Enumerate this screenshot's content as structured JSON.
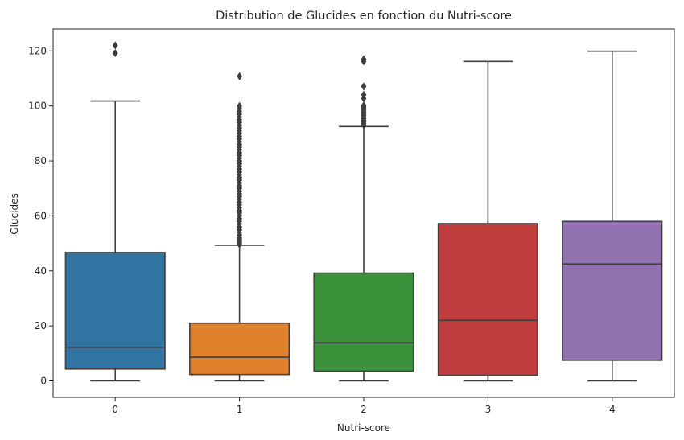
{
  "chart_data": {
    "type": "box",
    "title": "Distribution de Glucides en fonction du Nutri-score",
    "xlabel": "Nutri-score",
    "ylabel": "Glucides",
    "categories": [
      "0",
      "1",
      "2",
      "3",
      "4"
    ],
    "ylim": [
      -6,
      128
    ],
    "yticks": [
      0,
      20,
      40,
      60,
      80,
      100,
      120
    ],
    "grid": false,
    "boxes": [
      {
        "category": "0",
        "color": "#3274a1",
        "q1": 4.3,
        "median": 12.2,
        "q3": 46.7,
        "whisker_low": 0,
        "whisker_high": 101.8,
        "outliers": [
          119.2,
          122.0
        ]
      },
      {
        "category": "1",
        "color": "#e1812c",
        "q1": 2.3,
        "median": 8.6,
        "q3": 21.0,
        "whisker_low": 0,
        "whisker_high": 49.3,
        "outliers": [
          49.6,
          50.0,
          50.5,
          51.0,
          51.5,
          52.0,
          53.0,
          54.0,
          55.0,
          56.0,
          57.0,
          58.0,
          59.0,
          60.0,
          61.0,
          62.0,
          63.0,
          64.0,
          65.0,
          66.0,
          67.0,
          68.0,
          69.0,
          70.0,
          71.0,
          72.0,
          73.0,
          74.0,
          75.0,
          76.0,
          77.0,
          78.0,
          79.0,
          80.0,
          81.0,
          82.0,
          83.0,
          84.0,
          85.0,
          86.0,
          87.0,
          88.0,
          89.0,
          90.0,
          91.0,
          92.0,
          93.0,
          94.0,
          95.0,
          96.0,
          97.0,
          98.0,
          99.0,
          100.0,
          110.8
        ]
      },
      {
        "category": "2",
        "color": "#3a923a",
        "q1": 3.5,
        "median": 13.8,
        "q3": 39.2,
        "whisker_low": 0,
        "whisker_high": 92.5,
        "outliers": [
          93.0,
          93.6,
          94.2,
          94.8,
          95.4,
          96.0,
          96.6,
          97.2,
          97.8,
          98.4,
          99.0,
          99.6,
          100.2,
          102.7,
          104.1,
          107.1,
          116.2,
          117.0
        ]
      },
      {
        "category": "3",
        "color": "#c03d3e",
        "q1": 2.0,
        "median": 22.0,
        "q3": 57.2,
        "whisker_low": 0,
        "whisker_high": 116.2,
        "outliers": []
      },
      {
        "category": "4",
        "color": "#9372b2",
        "q1": 7.5,
        "median": 42.5,
        "q3": 58.0,
        "whisker_low": 0,
        "whisker_high": 119.9,
        "outliers": []
      }
    ]
  }
}
